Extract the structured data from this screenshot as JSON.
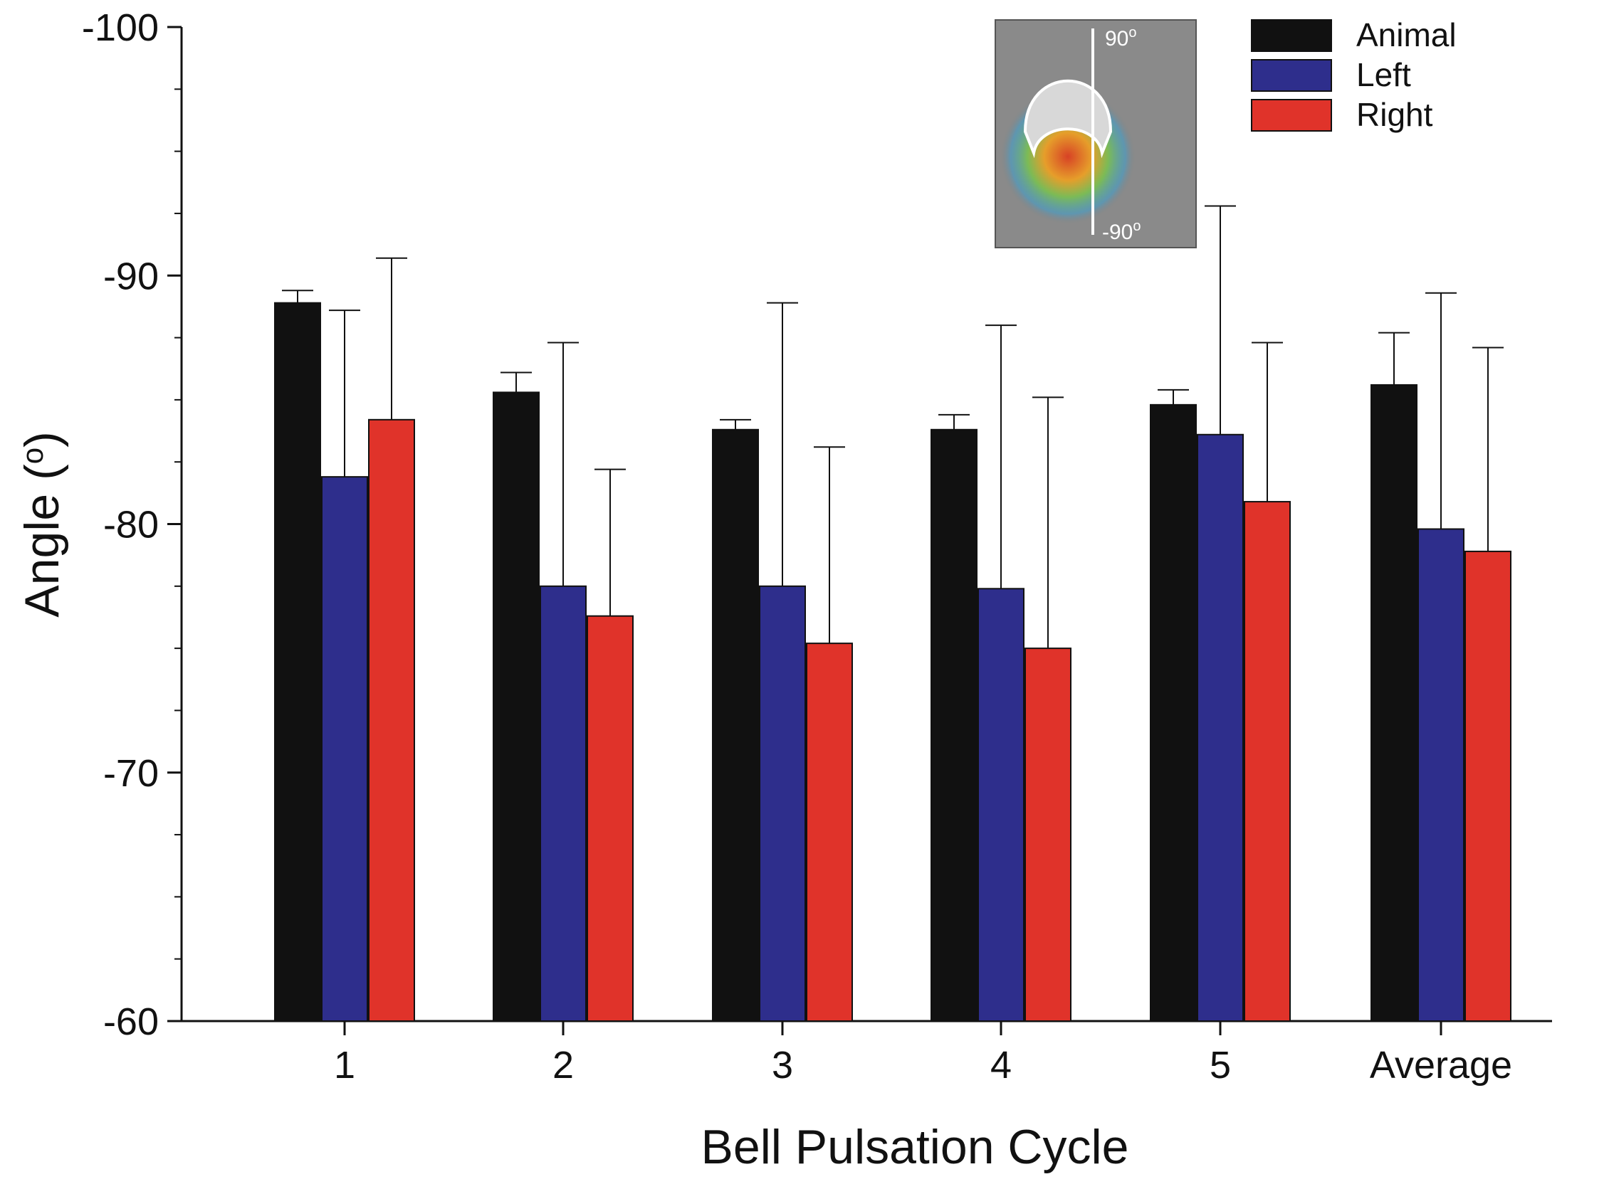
{
  "chart_data": {
    "type": "bar",
    "title": "",
    "xlabel": "Bell Pulsation Cycle",
    "ylabel": "Angle (o)",
    "ylim": [
      -60,
      -100
    ],
    "yticks": [
      -100,
      -90,
      -80,
      -70,
      -60
    ],
    "ytick_labels": [
      "-100",
      "-90",
      "-80",
      "-70",
      "-60"
    ],
    "categories": [
      "1",
      "2",
      "3",
      "4",
      "5",
      "Average"
    ],
    "legend_position": "top-right",
    "series": [
      {
        "name": "Animal",
        "color": "#111111",
        "values": [
          -88.9,
          -85.3,
          -83.8,
          -83.8,
          -84.8,
          -85.6
        ],
        "error": [
          0.5,
          0.8,
          0.4,
          0.6,
          0.6,
          2.1
        ]
      },
      {
        "name": "Left",
        "color": "#2e2e8c",
        "values": [
          -81.9,
          -77.5,
          -77.5,
          -77.4,
          -83.6,
          -79.8
        ],
        "error": [
          6.7,
          9.8,
          11.4,
          10.6,
          9.2,
          9.5
        ]
      },
      {
        "name": "Right",
        "color": "#e0332a",
        "values": [
          -84.2,
          -76.3,
          -75.2,
          -75.0,
          -80.9,
          -78.9
        ],
        "error": [
          6.5,
          5.9,
          7.9,
          10.1,
          6.4,
          8.2
        ]
      }
    ],
    "inset": {
      "top_label": "90",
      "bottom_label": "-90",
      "unit": "o"
    }
  }
}
